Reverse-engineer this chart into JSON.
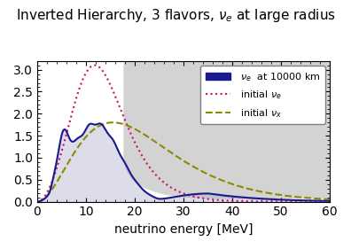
{
  "title": "Inverted Hierarchy, 3 flavors, $\\nu_e$ at large radius",
  "xlabel": "neutrino energy [MeV]",
  "xlim": [
    0,
    60
  ],
  "ylim": [
    0,
    3.2
  ],
  "yticks": [
    0,
    0.5,
    1.0,
    1.5,
    2.0,
    2.5,
    3.0
  ],
  "xticks": [
    0,
    10,
    20,
    30,
    40,
    50,
    60
  ],
  "legend_labels": [
    "$\\nu_e$  at 10000 km",
    "initial $\\nu_e$",
    "initial $\\nu_x$"
  ],
  "line_colors": [
    "#1a1a8c",
    "#cc1166",
    "#8b8b00"
  ],
  "line_styles": [
    "-",
    ":",
    "--"
  ],
  "fill_color": "#aaaacc",
  "fill_alpha": 0.4,
  "background_color": "#ffffff",
  "title_color": "#000000",
  "title_fontsize": 11,
  "axis_fontsize": 10
}
